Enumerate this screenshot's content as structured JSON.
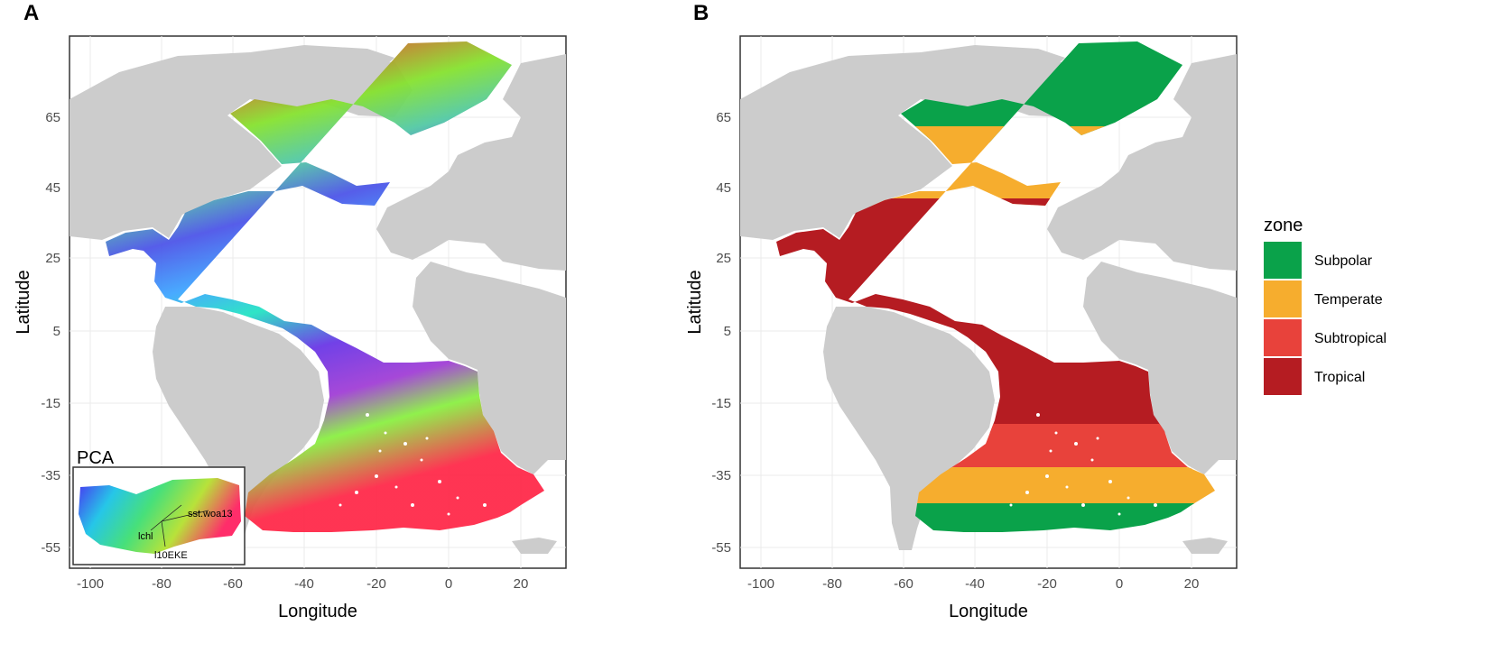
{
  "panels": [
    {
      "label": "A",
      "xlabel": "Longitude",
      "ylabel": "Latitude",
      "x_ticks": [
        "-100",
        "-80",
        "-60",
        "-40",
        "-20",
        "0",
        "20"
      ],
      "y_ticks": [
        "65",
        "45",
        "25",
        "5",
        "-15",
        "-35",
        "-55"
      ],
      "inset": {
        "title": "PCA",
        "vectors": [
          "sst.woa13",
          "lchl",
          "l10EKE"
        ]
      }
    },
    {
      "label": "B",
      "xlabel": "Longitude",
      "ylabel": "Latitude",
      "x_ticks": [
        "-100",
        "-80",
        "-60",
        "-40",
        "-20",
        "0",
        "20"
      ],
      "y_ticks": [
        "65",
        "45",
        "25",
        "5",
        "-15",
        "-35",
        "-55"
      ]
    }
  ],
  "legend": {
    "title": "zone",
    "items": [
      {
        "label": "Subpolar",
        "color": "#0aa24a"
      },
      {
        "label": "Temperate",
        "color": "#f6ad2e"
      },
      {
        "label": "Subtropical",
        "color": "#e8423b"
      },
      {
        "label": "Tropical",
        "color": "#b51c22"
      }
    ]
  },
  "colors": {
    "land": "#cccccc",
    "panel_bg": "#ffffff",
    "grid": "#ebebeb"
  }
}
